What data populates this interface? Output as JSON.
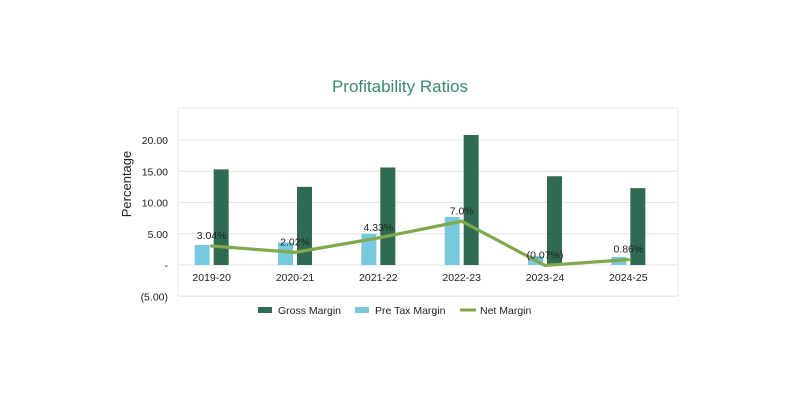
{
  "chart_data": {
    "type": "bar",
    "title": "Profitability Ratios",
    "ylabel": "Percentage",
    "xlabel": "",
    "categories": [
      "2019-20",
      "2020-21",
      "2021-22",
      "2022-23",
      "2023-24",
      "2024-25"
    ],
    "ylim": [
      -5,
      22
    ],
    "yticks": [
      -5,
      0,
      5,
      10,
      15,
      20
    ],
    "ytick_labels": [
      "(5.00)",
      "-",
      "5.00",
      "10.00",
      "15.00",
      "20.00"
    ],
    "grid": true,
    "legend_position": "bottom",
    "series": [
      {
        "name": "Gross Margin",
        "kind": "bar",
        "color": "#2e6b50",
        "values": [
          15.3,
          12.5,
          15.6,
          20.8,
          14.2,
          12.3
        ]
      },
      {
        "name": "Pre Tax Margin",
        "kind": "bar",
        "color": "#79c9de",
        "values": [
          3.2,
          3.6,
          5.0,
          7.7,
          1.4,
          1.3
        ]
      },
      {
        "name": "Net Margin",
        "kind": "line",
        "color": "#82a84d",
        "values": [
          3.04,
          2.02,
          4.33,
          7.0,
          -0.07,
          0.86
        ],
        "labels": [
          "3.04%",
          "2.02%",
          "4.33%",
          "7.0%",
          "(0.07%)",
          "0.86%"
        ]
      }
    ]
  }
}
